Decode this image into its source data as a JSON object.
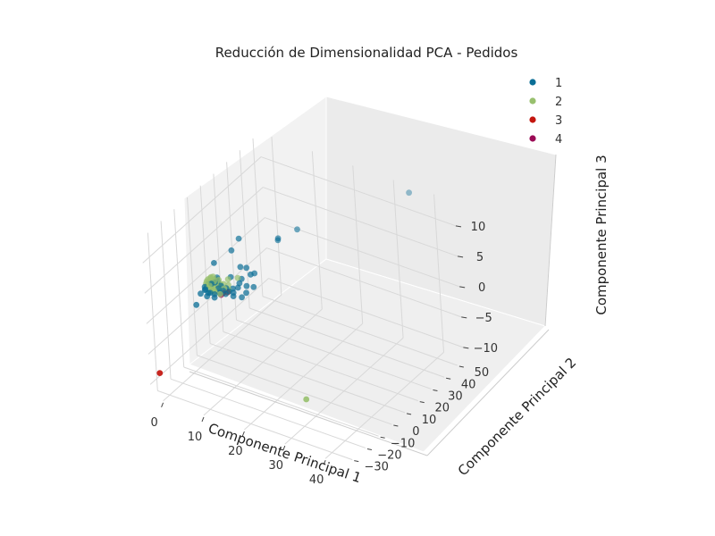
{
  "chart_data": {
    "type": "scatter",
    "projection": "3d",
    "title": "Reducción de Dimensionalidad PCA - Pedidos",
    "xlabel": "Componente Principal 1",
    "ylabel": "Componente Principal 2",
    "zlabel": "Componente Principal 3",
    "xlim": [
      -3,
      45
    ],
    "ylim": [
      -35,
      55
    ],
    "zlim": [
      -12,
      14
    ],
    "xticks": [
      "0",
      "10",
      "20",
      "30",
      "40"
    ],
    "yticks": [
      "−30",
      "−20",
      "−10",
      "0",
      "10",
      "20",
      "30",
      "40",
      "50"
    ],
    "zticks": [
      "−10",
      "−5",
      "0",
      "5",
      "10"
    ],
    "grid": true,
    "legend_position": "top-right",
    "colors": {
      "1": "#0b6e96",
      "2": "#98c06e",
      "3": "#c4160f",
      "4": "#9b0a55",
      "pane": "#f2f2f2",
      "grid": "#d8d8d8"
    },
    "series": [
      {
        "name": "1",
        "color": "#0b6e96",
        "points": [
          [
            0.4,
            1.5,
            0.2
          ],
          [
            0.7,
            2.2,
            0.3
          ],
          [
            1.2,
            2.9,
            0.5
          ],
          [
            1.5,
            0.7,
            0.7
          ],
          [
            2.1,
            1.5,
            0.9
          ],
          [
            2.5,
            2.5,
            1.0
          ],
          [
            3.1,
            1.0,
            0.3
          ],
          [
            3.5,
            1.9,
            0.6
          ],
          [
            0.2,
            -0.5,
            -0.4
          ],
          [
            -0.2,
            0.6,
            -0.2
          ],
          [
            0.6,
            -1.3,
            0.0
          ],
          [
            1.1,
            -0.8,
            -0.6
          ],
          [
            1.8,
            -1.4,
            -0.3
          ],
          [
            2.6,
            -0.6,
            -0.5
          ],
          [
            3.6,
            0.3,
            -0.2
          ],
          [
            4.2,
            1.2,
            0.1
          ],
          [
            4.6,
            2.3,
            0.4
          ],
          [
            5.0,
            0.5,
            -0.1
          ],
          [
            2.0,
            3.6,
            1.3
          ],
          [
            -0.5,
            -1.8,
            -0.9
          ],
          [
            1.3,
            -2.4,
            -0.8
          ],
          [
            3.0,
            -1.9,
            -0.7
          ],
          [
            5.6,
            1.4,
            0.3
          ],
          [
            6.1,
            2.8,
            0.6
          ],
          [
            6.5,
            1.9,
            0.2
          ],
          [
            7.2,
            3.4,
            0.9
          ],
          [
            6.8,
            0.8,
            -0.1
          ],
          [
            8.4,
            2.3,
            -0.2
          ],
          [
            7.5,
            5.5,
            2.0
          ],
          [
            8.9,
            4.8,
            1.3
          ],
          [
            9.5,
            6.5,
            3.0
          ],
          [
            8.2,
            7.5,
            3.6
          ],
          [
            10.2,
            7.3,
            3.2
          ],
          [
            7.2,
            6.0,
            3.8
          ],
          [
            9.3,
            3.1,
            0.6
          ],
          [
            10.6,
            5.0,
            1.5
          ],
          [
            4.5,
            8.0,
            5.5
          ],
          [
            6.0,
            9.5,
            7.5
          ],
          [
            -0.8,
            -4.5,
            -2.3
          ],
          [
            2.4,
            0.9,
            4.3
          ],
          [
            7.6,
            3.5,
            1.7
          ],
          [
            5.2,
            4.3,
            2.0
          ]
        ]
      },
      {
        "name": "1",
        "color": "#0b6e96",
        "hidden_legend": true,
        "points": [
          [
            34.5,
            52.8,
            13.4
          ],
          [
            15.4,
            25.2,
            8.2
          ],
          [
            12.6,
            18.8,
            7.0
          ],
          [
            12.4,
            19.6,
            7.1
          ]
        ]
      },
      {
        "name": "2",
        "color": "#98c06e",
        "points": [
          [
            0.5,
            1.8,
            0.4
          ],
          [
            1.0,
            2.5,
            0.6
          ],
          [
            1.4,
            3.0,
            0.9
          ],
          [
            1.7,
            1.6,
            0.3
          ],
          [
            2.2,
            2.2,
            0.5
          ],
          [
            0.2,
            0.9,
            0.0
          ],
          [
            0.8,
            0.2,
            -0.1
          ],
          [
            1.3,
            1.1,
            0.1
          ],
          [
            2.0,
            0.7,
            -0.2
          ],
          [
            2.7,
            1.5,
            0.2
          ],
          [
            3.1,
            2.6,
            0.7
          ],
          [
            0.1,
            2.4,
            0.8
          ],
          [
            -0.1,
            1.4,
            0.2
          ],
          [
            0.6,
            3.3,
            1.1
          ],
          [
            1.9,
            3.6,
            1.0
          ],
          [
            2.4,
            0.1,
            -0.3
          ],
          [
            1.6,
            -0.4,
            -0.3
          ],
          [
            3.4,
            1.2,
            0.1
          ],
          [
            0.9,
            1.7,
            1.3
          ],
          [
            1.5,
            2.2,
            1.6
          ],
          [
            2.1,
            1.1,
            1.2
          ],
          [
            2.9,
            2.1,
            1.4
          ],
          [
            0.4,
            0.5,
            0.9
          ],
          [
            3.8,
            2.9,
            0.8
          ],
          [
            1.2,
            2.0,
            -0.6
          ],
          [
            2.5,
            1.9,
            -0.5
          ],
          [
            4.6,
            4.0,
            0.6
          ],
          [
            4.3,
            1.7,
            0.4
          ],
          [
            3.7,
            0.3,
            -0.4
          ],
          [
            5.1,
            2.6,
            0.2
          ],
          [
            2.6,
            3.1,
            0.4
          ],
          [
            1.1,
            0.3,
            0.4
          ],
          [
            0.7,
            2.7,
            -0.3
          ],
          [
            33.8,
            -28.5,
            -5.0
          ],
          [
            6.9,
            4.5,
            2.2
          ],
          [
            4.8,
            3.4,
            1.7
          ]
        ]
      },
      {
        "name": "3",
        "color": "#c4160f",
        "points": [
          [
            -1.3,
            -32.5,
            -8.2
          ],
          [
            4.0,
            1.6,
            -0.4
          ],
          [
            4.9,
            2.3,
            -0.2
          ]
        ]
      },
      {
        "name": "4",
        "color": "#9b0a55",
        "points": [
          [
            3.5,
            1.5,
            -0.8
          ]
        ]
      }
    ]
  }
}
